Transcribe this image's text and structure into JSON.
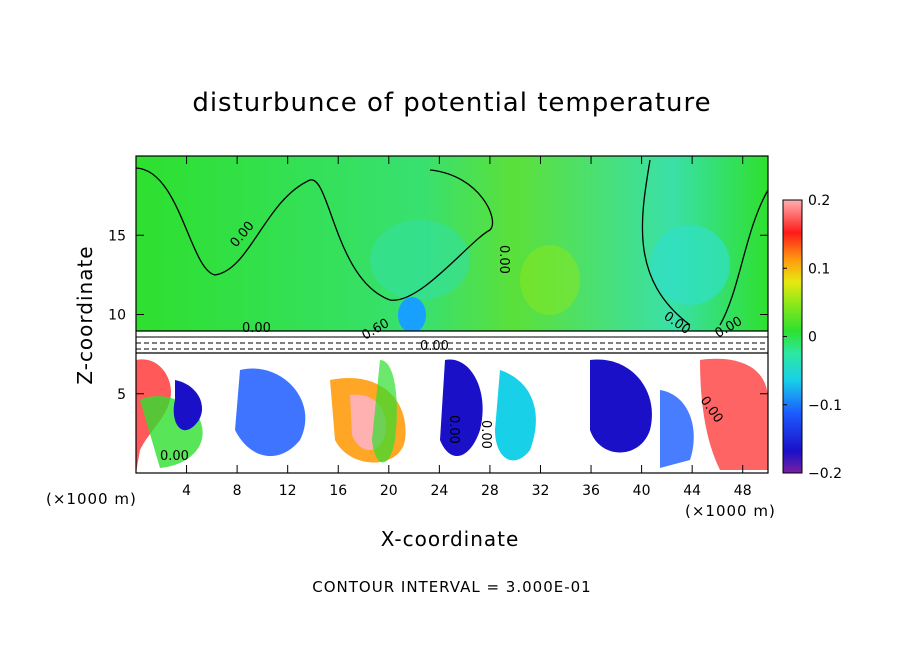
{
  "chart_data": {
    "type": "heatmap",
    "title": "disturbunce of potential temperature",
    "xlabel": "X-coordinate",
    "ylabel": "Z-coordinate",
    "x_unit": "(×1000 m)",
    "footnote": "CONTOUR INTERVAL = 3.000E-01",
    "xlim": [
      0,
      50
    ],
    "ylim": [
      0,
      20
    ],
    "x_ticks": [
      4,
      8,
      12,
      16,
      20,
      24,
      28,
      32,
      36,
      40,
      44,
      48
    ],
    "y_ticks": [
      5,
      10,
      15
    ],
    "colorbar": {
      "min": -0.2,
      "max": 0.2,
      "ticks": [
        "0.2",
        "0.1",
        "0",
        "−0.1",
        "−0.2"
      ]
    },
    "contour_labels": [
      "0.00",
      "0.00",
      "0.00",
      "0.00",
      "0.60",
      "0.00",
      "0.00",
      "0.00",
      "0.00",
      "0.00",
      "0.00"
    ],
    "grid": false
  }
}
